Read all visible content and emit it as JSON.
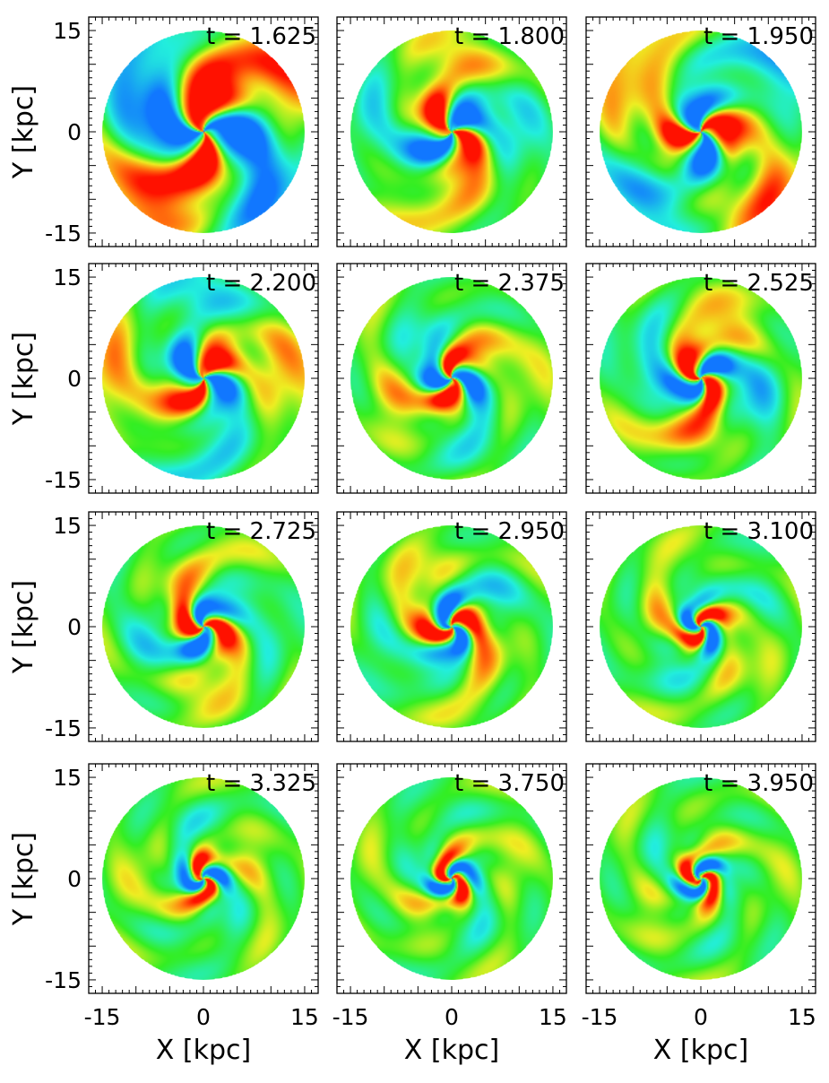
{
  "chart_data": {
    "type": "heatmap",
    "description_note": "",
    "xlabel": "X [kpc]",
    "ylabel": "Y [kpc]",
    "xlim": [
      -17,
      17
    ],
    "ylim": [
      -17,
      17
    ],
    "xticks": [
      "-15",
      "0",
      "15"
    ],
    "yticks": [
      "15",
      "0",
      "-15"
    ],
    "colors": {
      "background": "#33ee22",
      "positive": "#ff1100",
      "negative": "#1177ff",
      "cyan": "#22eedd",
      "yellow": "#eeee22",
      "orange": "#ff8811"
    },
    "panels": [
      {
        "label": "t = 1.625",
        "t": 1.625,
        "arms": 2,
        "phase": -40,
        "inner": 3,
        "outer": 14,
        "pitch": 0.55,
        "amp": 1.0,
        "outerAmp": 0.9
      },
      {
        "label": "t = 1.800",
        "t": 1.8,
        "arms": 2,
        "phase": 10,
        "inner": 2,
        "outer": 11,
        "pitch": 0.45,
        "amp": 0.9,
        "outerAmp": 0.5
      },
      {
        "label": "t = 1.950",
        "t": 1.95,
        "arms": 2,
        "phase": 60,
        "inner": 2,
        "outer": 14,
        "pitch": 0.5,
        "amp": 0.95,
        "outerAmp": 0.8
      },
      {
        "label": "t = 2.200",
        "t": 2.2,
        "arms": 2,
        "phase": 110,
        "inner": 2,
        "outer": 13,
        "pitch": 0.45,
        "amp": 0.9,
        "outerAmp": 0.6
      },
      {
        "label": "t = 2.375",
        "t": 2.375,
        "arms": 2,
        "phase": 150,
        "inner": 1.5,
        "outer": 8,
        "pitch": 0.3,
        "amp": 0.9,
        "outerAmp": 0.5
      },
      {
        "label": "t = 2.525",
        "t": 2.525,
        "arms": 2,
        "phase": 200,
        "inner": 1.5,
        "outer": 8,
        "pitch": 0.3,
        "amp": 0.9,
        "outerAmp": 0.7
      },
      {
        "label": "t = 2.725",
        "t": 2.725,
        "arms": 2,
        "phase": 245,
        "inner": 1.5,
        "outer": 8,
        "pitch": 0.25,
        "amp": 0.9,
        "outerAmp": 0.5
      },
      {
        "label": "t = 2.950",
        "t": 2.95,
        "arms": 2,
        "phase": 290,
        "inner": 1.5,
        "outer": 8,
        "pitch": 0.2,
        "amp": 0.9,
        "outerAmp": 0.5
      },
      {
        "label": "t = 3.100",
        "t": 3.1,
        "arms": 2,
        "phase": 330,
        "inner": 1.2,
        "outer": 7,
        "pitch": 0.15,
        "amp": 0.85,
        "outerAmp": 0.4
      },
      {
        "label": "t = 3.325",
        "t": 3.325,
        "arms": 2,
        "phase": 20,
        "inner": 1.2,
        "outer": 7,
        "pitch": 0.15,
        "amp": 0.85,
        "outerAmp": 0.35
      },
      {
        "label": "t = 3.750",
        "t": 3.75,
        "arms": 2,
        "phase": 60,
        "inner": 1.2,
        "outer": 7,
        "pitch": 0.12,
        "amp": 0.85,
        "outerAmp": 0.3
      },
      {
        "label": "t = 3.950",
        "t": 3.95,
        "arms": 2,
        "phase": 90,
        "inner": 1.2,
        "outer": 7,
        "pitch": 0.1,
        "amp": 0.85,
        "outerAmp": 0.25
      }
    ]
  }
}
